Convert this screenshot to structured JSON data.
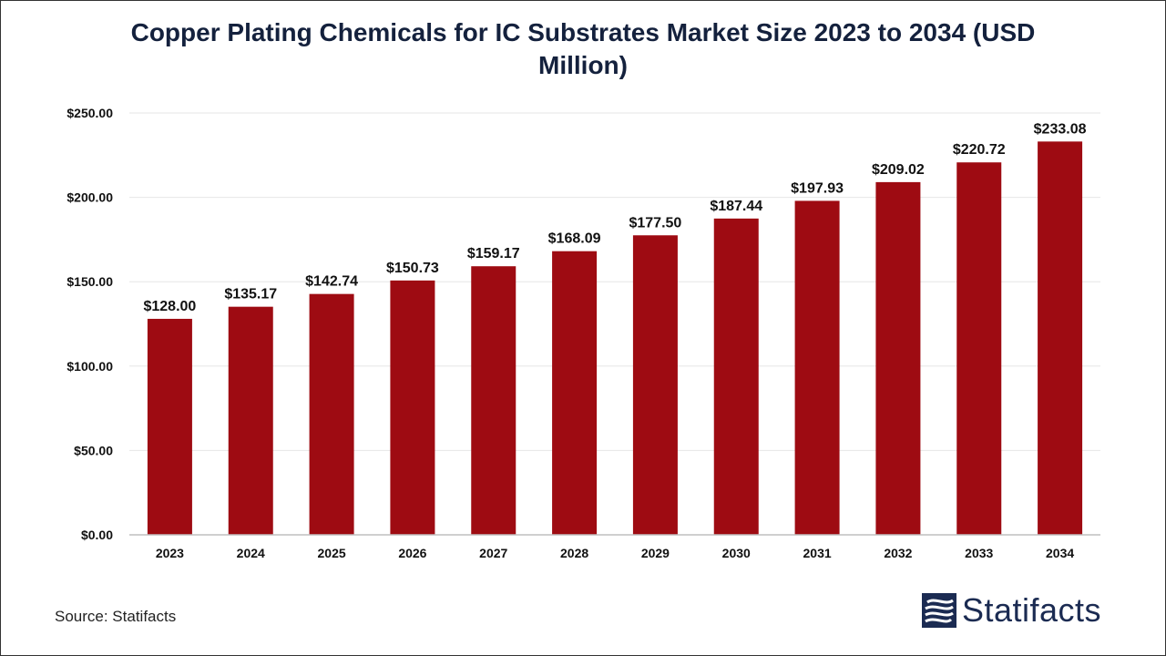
{
  "chart_data": {
    "type": "bar",
    "title": "Copper Plating Chemicals for IC Substrates Market Size 2023 to 2034 (USD Million)",
    "categories": [
      "2023",
      "2024",
      "2025",
      "2026",
      "2027",
      "2028",
      "2029",
      "2030",
      "2031",
      "2032",
      "2033",
      "2034"
    ],
    "values": [
      128.0,
      135.17,
      142.74,
      150.73,
      159.17,
      168.09,
      177.5,
      187.44,
      197.93,
      209.02,
      220.72,
      233.08
    ],
    "value_labels": [
      "$128.00",
      "$135.17",
      "$142.74",
      "$150.73",
      "$159.17",
      "$168.09",
      "$177.50",
      "$187.44",
      "$197.93",
      "$209.02",
      "$220.72",
      "$233.08"
    ],
    "y_ticks": [
      0,
      50,
      100,
      150,
      200,
      250
    ],
    "y_tick_labels": [
      "$0.00",
      "$50.00",
      "$100.00",
      "$150.00",
      "$200.00",
      "$250.00"
    ],
    "ylim": [
      0,
      250
    ],
    "xlabel": "",
    "ylabel": "",
    "bar_color": "#9e0b12",
    "grid": true,
    "legend": "none"
  },
  "footer": {
    "source": "Source: Statifacts",
    "brand": "Statifacts",
    "brand_color": "#1b2b52"
  }
}
